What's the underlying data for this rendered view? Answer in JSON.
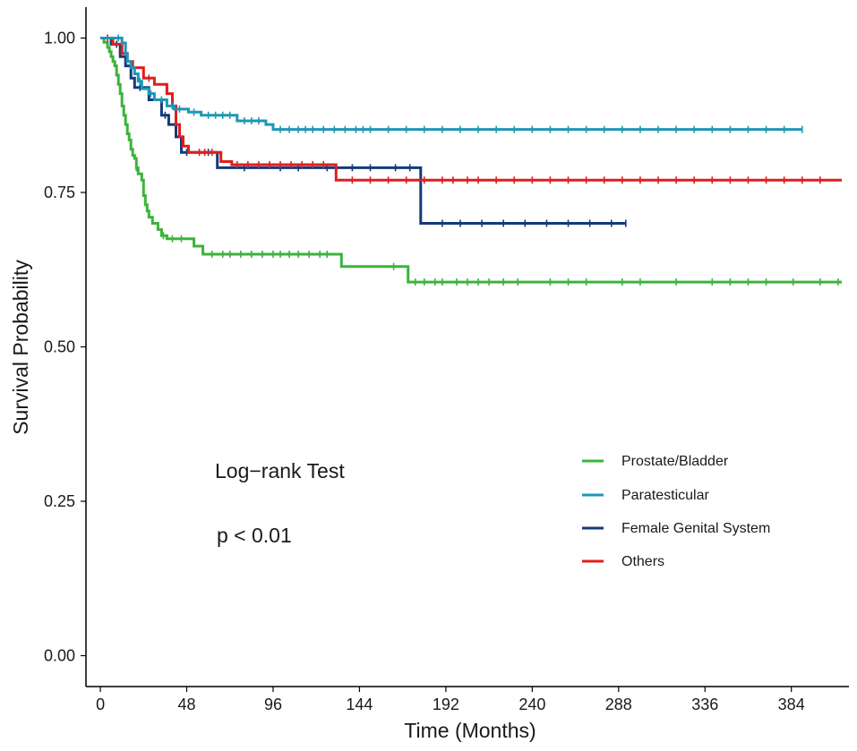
{
  "chart_data": {
    "type": "line",
    "subtype": "kaplan-meier",
    "title": "",
    "xlabel": "Time (Months)",
    "ylabel": "Survival Probability",
    "xlim": [
      -8,
      416
    ],
    "ylim": [
      -0.05,
      1.05
    ],
    "x_ticks": [
      0,
      48,
      96,
      144,
      192,
      240,
      288,
      336,
      384
    ],
    "x_tick_labels": [
      "0",
      "48",
      "96",
      "144",
      "192",
      "240",
      "288",
      "336",
      "384"
    ],
    "y_ticks": [
      0,
      0.25,
      0.5,
      0.75,
      1.0
    ],
    "y_tick_labels": [
      "0.00",
      "0.25",
      "0.50",
      "0.75",
      "1.00"
    ],
    "grid": false,
    "legend_position": "right",
    "annotations": [
      {
        "text": "Log−rank Test"
      },
      {
        "text": "p < 0.01"
      }
    ],
    "series": [
      {
        "name": "Prostate/Bladder",
        "color": "#3cb33c",
        "steps": [
          [
            0,
            1.0
          ],
          [
            2,
            0.993
          ],
          [
            4,
            0.985
          ],
          [
            5,
            0.978
          ],
          [
            6,
            0.97
          ],
          [
            7,
            0.962
          ],
          [
            8,
            0.955
          ],
          [
            9,
            0.94
          ],
          [
            10,
            0.925
          ],
          [
            11,
            0.91
          ],
          [
            12,
            0.89
          ],
          [
            13,
            0.875
          ],
          [
            14,
            0.86
          ],
          [
            15,
            0.845
          ],
          [
            16,
            0.835
          ],
          [
            17,
            0.82
          ],
          [
            18,
            0.81
          ],
          [
            19,
            0.805
          ],
          [
            20,
            0.79
          ],
          [
            21,
            0.78
          ],
          [
            23,
            0.77
          ],
          [
            24,
            0.745
          ],
          [
            25,
            0.73
          ],
          [
            26,
            0.72
          ],
          [
            27,
            0.71
          ],
          [
            29,
            0.7
          ],
          [
            32,
            0.69
          ],
          [
            34,
            0.68
          ],
          [
            37,
            0.675
          ],
          [
            52,
            0.663
          ],
          [
            57,
            0.65
          ],
          [
            134,
            0.63
          ],
          [
            171,
            0.605
          ],
          [
            412,
            0.605
          ]
        ],
        "censored": [
          20,
          35,
          40,
          45,
          62,
          68,
          72,
          78,
          84,
          90,
          96,
          100,
          105,
          110,
          116,
          122,
          126,
          163,
          175,
          180,
          186,
          190,
          198,
          204,
          210,
          216,
          224,
          232,
          250,
          260,
          270,
          290,
          300,
          320,
          340,
          350,
          360,
          370,
          385,
          400,
          410
        ]
      },
      {
        "name": "Paratesticular",
        "color": "#1e97b5",
        "steps": [
          [
            0,
            1.0
          ],
          [
            12,
            0.992
          ],
          [
            14,
            0.975
          ],
          [
            15,
            0.962
          ],
          [
            17,
            0.952
          ],
          [
            19,
            0.942
          ],
          [
            21,
            0.93
          ],
          [
            23,
            0.918
          ],
          [
            27,
            0.91
          ],
          [
            30,
            0.9
          ],
          [
            37,
            0.89
          ],
          [
            41,
            0.885
          ],
          [
            49,
            0.88
          ],
          [
            56,
            0.875
          ],
          [
            76,
            0.866
          ],
          [
            92,
            0.86
          ],
          [
            96,
            0.852
          ],
          [
            390,
            0.852
          ]
        ],
        "censored": [
          10,
          22,
          28,
          34,
          40,
          44,
          52,
          60,
          64,
          68,
          72,
          80,
          84,
          88,
          100,
          105,
          110,
          114,
          118,
          124,
          130,
          136,
          142,
          146,
          150,
          160,
          170,
          180,
          190,
          200,
          210,
          220,
          230,
          240,
          250,
          260,
          270,
          280,
          290,
          300,
          310,
          320,
          330,
          340,
          350,
          360,
          370,
          380,
          390
        ]
      },
      {
        "name": "Female Genital System",
        "color": "#143a7a",
        "steps": [
          [
            0,
            1.0
          ],
          [
            6,
            0.99
          ],
          [
            11,
            0.97
          ],
          [
            14,
            0.955
          ],
          [
            17,
            0.935
          ],
          [
            19,
            0.92
          ],
          [
            27,
            0.9
          ],
          [
            34,
            0.875
          ],
          [
            38,
            0.86
          ],
          [
            42,
            0.84
          ],
          [
            45,
            0.815
          ],
          [
            54,
            0.815
          ],
          [
            65,
            0.79
          ],
          [
            176,
            0.79
          ],
          [
            178,
            0.7
          ],
          [
            292,
            0.7
          ]
        ],
        "censored": [
          9,
          22,
          36,
          48,
          60,
          80,
          100,
          110,
          126,
          140,
          150,
          164,
          172,
          190,
          200,
          212,
          224,
          236,
          248,
          260,
          272,
          284,
          292
        ]
      },
      {
        "name": "Others",
        "color": "#e01e1e",
        "steps": [
          [
            0,
            1.0
          ],
          [
            7,
            0.99
          ],
          [
            12,
            0.975
          ],
          [
            15,
            0.962
          ],
          [
            18,
            0.952
          ],
          [
            24,
            0.935
          ],
          [
            30,
            0.925
          ],
          [
            37,
            0.91
          ],
          [
            40,
            0.89
          ],
          [
            42,
            0.86
          ],
          [
            44,
            0.84
          ],
          [
            46,
            0.825
          ],
          [
            49,
            0.815
          ],
          [
            67,
            0.8
          ],
          [
            73,
            0.795
          ],
          [
            130,
            0.795
          ],
          [
            131,
            0.77
          ],
          [
            412,
            0.77
          ]
        ],
        "censored": [
          4,
          27,
          55,
          58,
          62,
          76,
          82,
          88,
          94,
          100,
          106,
          112,
          118,
          124,
          140,
          150,
          160,
          170,
          180,
          190,
          196,
          204,
          210,
          220,
          230,
          240,
          250,
          260,
          270,
          280,
          290,
          300,
          310,
          320,
          330,
          340,
          350,
          360,
          370,
          380,
          390,
          400
        ]
      }
    ]
  }
}
